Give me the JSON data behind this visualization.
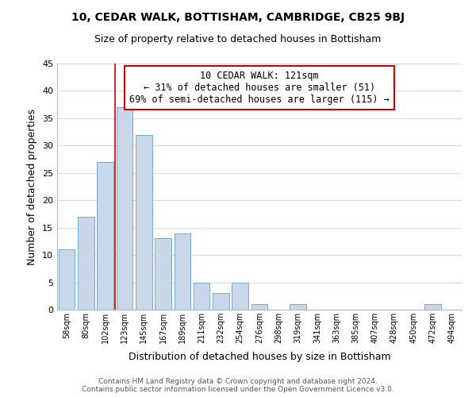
{
  "title": "10, CEDAR WALK, BOTTISHAM, CAMBRIDGE, CB25 9BJ",
  "subtitle": "Size of property relative to detached houses in Bottisham",
  "bar_labels": [
    "58sqm",
    "80sqm",
    "102sqm",
    "123sqm",
    "145sqm",
    "167sqm",
    "189sqm",
    "211sqm",
    "232sqm",
    "254sqm",
    "276sqm",
    "298sqm",
    "319sqm",
    "341sqm",
    "363sqm",
    "385sqm",
    "407sqm",
    "428sqm",
    "450sqm",
    "472sqm",
    "494sqm"
  ],
  "bar_values": [
    11,
    17,
    27,
    37,
    32,
    13,
    14,
    5,
    3,
    5,
    1,
    0,
    1,
    0,
    0,
    0,
    0,
    0,
    0,
    1,
    0
  ],
  "bar_color": "#c8d8ea",
  "bar_edge_color": "#7aaac8",
  "highlight_bar_index": 3,
  "highlight_line_color": "#cc0000",
  "annotation_line1": "10 CEDAR WALK: 121sqm",
  "annotation_line2": "← 31% of detached houses are smaller (51)",
  "annotation_line3": "69% of semi-detached houses are larger (115) →",
  "annotation_box_color": "#ffffff",
  "annotation_box_edge": "#cc0000",
  "xlabel": "Distribution of detached houses by size in Bottisham",
  "ylabel": "Number of detached properties",
  "ylim": [
    0,
    45
  ],
  "yticks": [
    0,
    5,
    10,
    15,
    20,
    25,
    30,
    35,
    40,
    45
  ],
  "footer_line1": "Contains HM Land Registry data © Crown copyright and database right 2024.",
  "footer_line2": "Contains public sector information licensed under the Open Government Licence v3.0.",
  "bg_color": "#ffffff",
  "grid_color": "#d0dde8"
}
